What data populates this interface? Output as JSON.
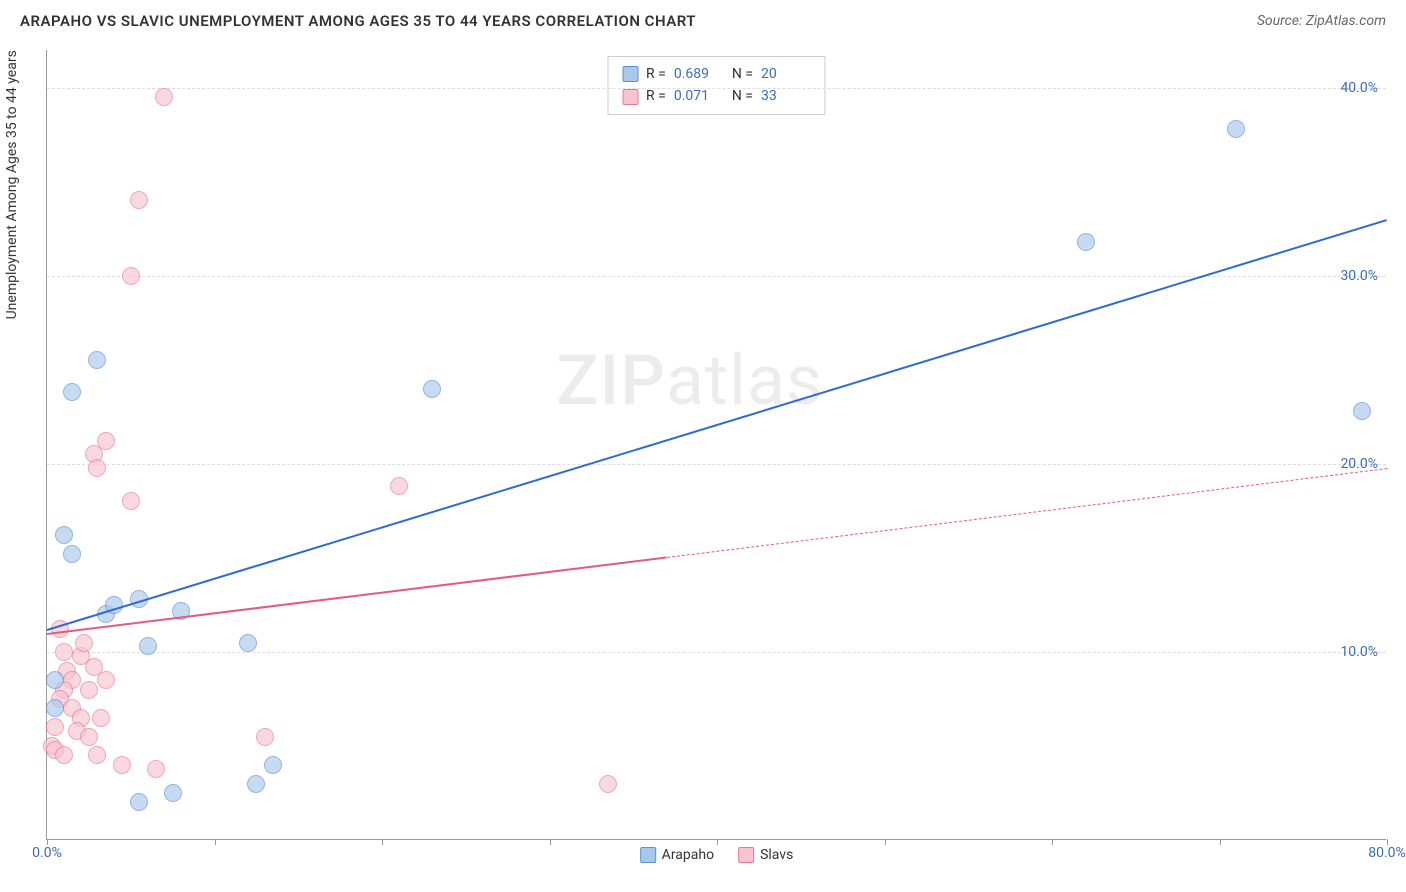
{
  "header": {
    "title": "ARAPAHO VS SLAVIC UNEMPLOYMENT AMONG AGES 35 TO 44 YEARS CORRELATION CHART",
    "source": "Source: ZipAtlas.com"
  },
  "watermark": {
    "zip": "ZIP",
    "atlas": "atlas"
  },
  "chart": {
    "type": "scatter",
    "ylabel": "Unemployment Among Ages 35 to 44 years",
    "xlim": [
      0,
      80
    ],
    "ylim": [
      0,
      42
    ],
    "ytick_values": [
      10,
      20,
      30,
      40
    ],
    "ytick_labels": [
      "10.0%",
      "20.0%",
      "30.0%",
      "40.0%"
    ],
    "xtick_values": [
      0,
      10,
      20,
      30,
      40,
      50,
      60,
      70,
      80
    ],
    "xtick_labels": {
      "0": "0.0%",
      "80": "80.0%"
    },
    "grid_color": "#dddddd",
    "axis_color": "#999999",
    "text_color": "#3b6db5",
    "background_color": "#ffffff",
    "series": {
      "arapaho": {
        "label": "Arapaho",
        "color_fill": "#a8c8ec",
        "color_stroke": "#5b8fd4",
        "marker_size": 18,
        "R": "0.689",
        "N": "20",
        "trend": {
          "x1": 0,
          "y1": 11.2,
          "x2": 80,
          "y2": 33.0,
          "color": "#2e6bd4",
          "width": 2,
          "dashed": false
        },
        "points": [
          [
            0.5,
            8.5
          ],
          [
            1.0,
            16.2
          ],
          [
            1.5,
            23.8
          ],
          [
            3.0,
            25.5
          ],
          [
            1.5,
            15.2
          ],
          [
            6.0,
            10.3
          ],
          [
            5.5,
            12.8
          ],
          [
            8.0,
            12.2
          ],
          [
            23.0,
            24.0
          ],
          [
            12.0,
            10.5
          ],
          [
            13.5,
            4.0
          ],
          [
            12.5,
            3.0
          ],
          [
            5.5,
            2.0
          ],
          [
            7.5,
            2.5
          ],
          [
            3.5,
            12.0
          ],
          [
            4.0,
            12.5
          ],
          [
            62.0,
            31.8
          ],
          [
            71.0,
            37.8
          ],
          [
            78.5,
            22.8
          ],
          [
            0.5,
            7.0
          ]
        ]
      },
      "slavs": {
        "label": "Slavs",
        "color_fill": "#f7c4d1",
        "color_stroke": "#e57a98",
        "marker_size": 18,
        "R": "0.071",
        "N": "33",
        "trend": {
          "x1": 0,
          "y1": 11.0,
          "x2": 80,
          "y2": 19.8,
          "color": "#e45b80",
          "width": 2,
          "dashed_after_x": 37
        },
        "points": [
          [
            7.0,
            39.5
          ],
          [
            5.5,
            34.0
          ],
          [
            5.0,
            30.0
          ],
          [
            3.5,
            21.2
          ],
          [
            2.8,
            20.5
          ],
          [
            3.0,
            19.8
          ],
          [
            5.0,
            18.0
          ],
          [
            21.0,
            18.8
          ],
          [
            13.0,
            5.5
          ],
          [
            33.5,
            3.0
          ],
          [
            0.8,
            11.2
          ],
          [
            1.0,
            10.0
          ],
          [
            1.2,
            9.0
          ],
          [
            1.5,
            8.5
          ],
          [
            1.0,
            8.0
          ],
          [
            0.8,
            7.5
          ],
          [
            1.5,
            7.0
          ],
          [
            2.0,
            6.5
          ],
          [
            0.5,
            6.0
          ],
          [
            1.8,
            5.8
          ],
          [
            2.5,
            5.5
          ],
          [
            0.3,
            5.0
          ],
          [
            0.5,
            4.8
          ],
          [
            1.0,
            4.5
          ],
          [
            2.8,
            9.2
          ],
          [
            3.5,
            8.5
          ],
          [
            3.0,
            4.5
          ],
          [
            4.5,
            4.0
          ],
          [
            6.5,
            3.8
          ],
          [
            2.0,
            9.8
          ],
          [
            2.5,
            8.0
          ],
          [
            2.2,
            10.5
          ],
          [
            3.2,
            6.5
          ]
        ]
      }
    },
    "legend_bottom": [
      {
        "key": "arapaho",
        "label": "Arapaho"
      },
      {
        "key": "slavs",
        "label": "Slavs"
      }
    ]
  }
}
